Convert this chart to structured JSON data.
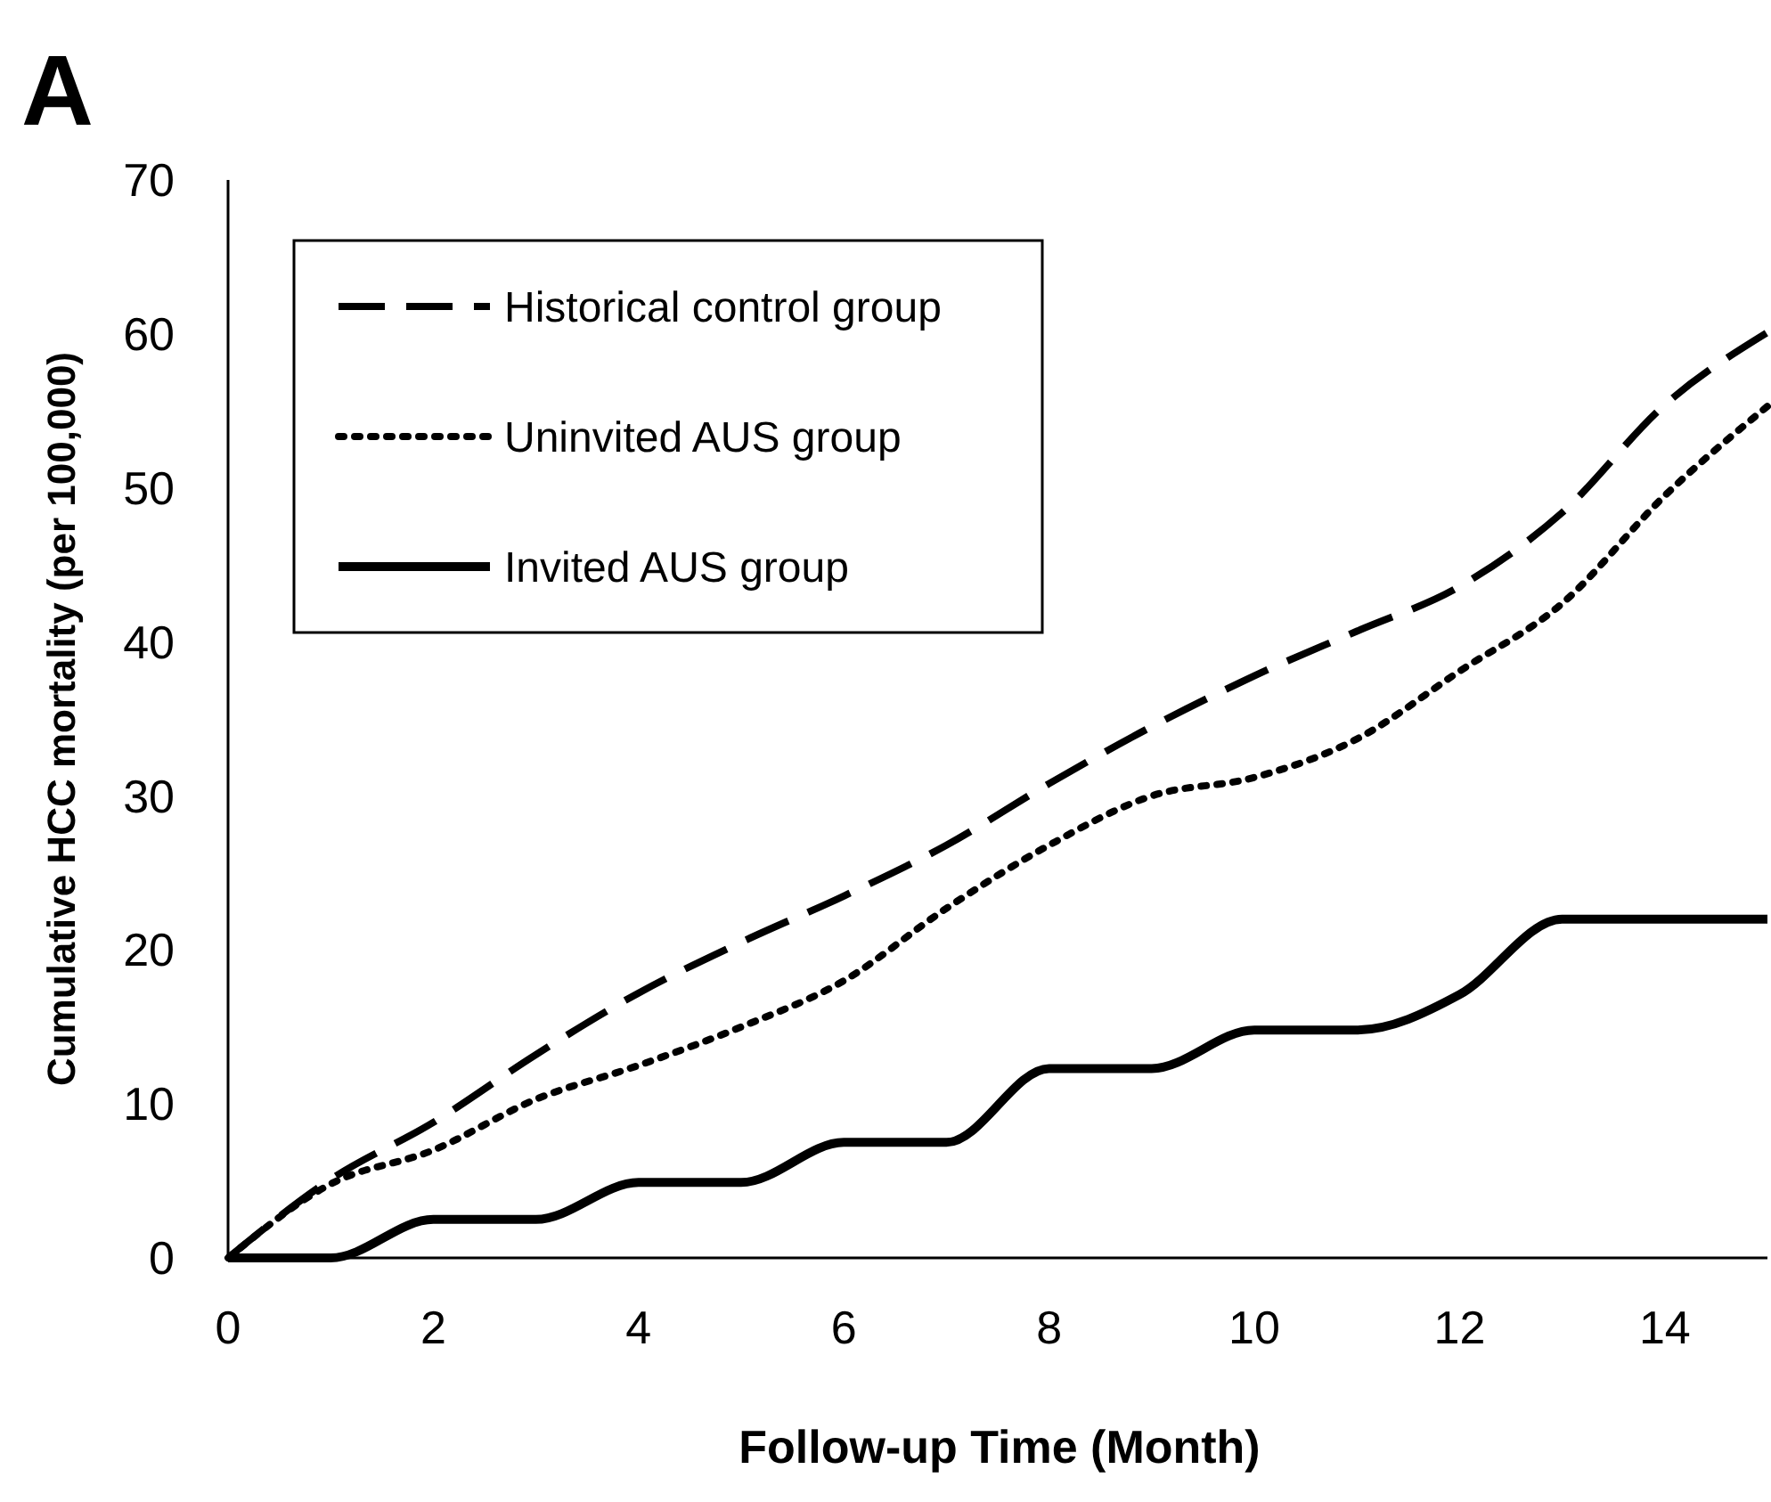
{
  "chart_data": {
    "type": "line",
    "xlabel": "Follow-up Time (Month)",
    "ylabel": "Cumulative HCC mortality (per 100,000)",
    "annotations": [
      "A"
    ],
    "x": [
      0,
      1,
      2,
      3,
      4,
      5,
      6,
      7,
      8,
      9,
      10,
      11,
      12,
      13,
      14,
      15
    ],
    "series": [
      {
        "name": "Historical control group",
        "color": "#000000",
        "line_style": "dashed",
        "values": [
          0,
          5.1,
          8.8,
          13.2,
          17.2,
          20.5,
          23.5,
          26.8,
          30.8,
          34.5,
          37.8,
          40.7,
          43.6,
          48.4,
          55.4,
          60.1
        ]
      },
      {
        "name": "Uninvited AUS group",
        "color": "#000000",
        "line_style": "dotted",
        "values": [
          0,
          4.8,
          7,
          10.3,
          12.5,
          15,
          18,
          22.7,
          26.8,
          30,
          31.2,
          33.7,
          38.1,
          42.5,
          49.5,
          55.3
        ]
      },
      {
        "name": "Invited AUS group",
        "color": "#000000",
        "line_style": "solid",
        "values": [
          0,
          0,
          2.5,
          2.5,
          4.9,
          4.9,
          7.5,
          7.5,
          12.3,
          12.3,
          14.8,
          14.8,
          17.1,
          22,
          22,
          22
        ]
      }
    ],
    "xlim": [
      0,
      15
    ],
    "xticks": [
      0,
      2,
      4,
      6,
      8,
      10,
      12,
      14
    ],
    "ylim": [
      0,
      70
    ],
    "yticks": [
      0,
      10,
      20,
      30,
      40,
      50,
      60,
      70
    ],
    "grid": false,
    "legend": "top left"
  }
}
